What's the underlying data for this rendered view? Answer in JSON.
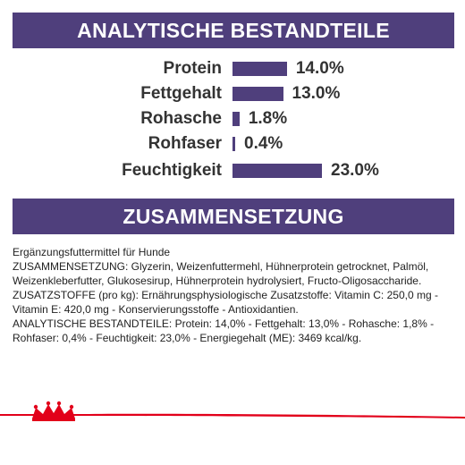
{
  "analysis": {
    "heading": "ANALYTISCHE BESTANDTEILE",
    "colors": {
      "banner": "#4f3f7c",
      "bar": "#4f3f7c"
    },
    "scale_max_percent": 23.0,
    "items": [
      {
        "label": "Protein",
        "value": 14.0,
        "value_text": "14.0%"
      },
      {
        "label": "Fettgehalt",
        "value": 13.0,
        "value_text": "13.0%"
      },
      {
        "label": "Rohasche",
        "value": 1.8,
        "value_text": "1.8%"
      },
      {
        "label": "Rohfaser",
        "value": 0.4,
        "value_text": "0.4%"
      },
      {
        "label": "Feuchtigkeit",
        "value": 23.0,
        "value_text": "23.0%"
      }
    ]
  },
  "composition": {
    "heading": "ZUSAMMENSETZUNG",
    "lines": [
      "Ergänzungsfuttermittel für Hunde",
      "ZUSAMMENSETZUNG: Glyzerin, Weizenfuttermehl, Hühnerprotein getrocknet, Palmöl, Weizenkleberfutter, Glukosesirup, Hühnerprotein hydrolysiert, Fructo-Oligosaccharide.",
      "ZUSATZSTOFFE (pro kg): Ernährungsphysiologische Zusatzstoffe: Vitamin C: 250,0 mg - Vitamin E: 420,0 mg - Konservierungsstoffe - Antioxidantien.",
      "ANALYTISCHE BESTANDTEILE: Protein: 14,0% - Fettgehalt: 13,0% - Rohasche: 1,8% - Rohfaser: 0,4% - Feuchtigkeit: 23,0% - Energiegehalt (ME): 3469 kcal/kg."
    ]
  },
  "footer": {
    "logo_icon": "crown-icon",
    "accent_color": "#e2001a"
  }
}
